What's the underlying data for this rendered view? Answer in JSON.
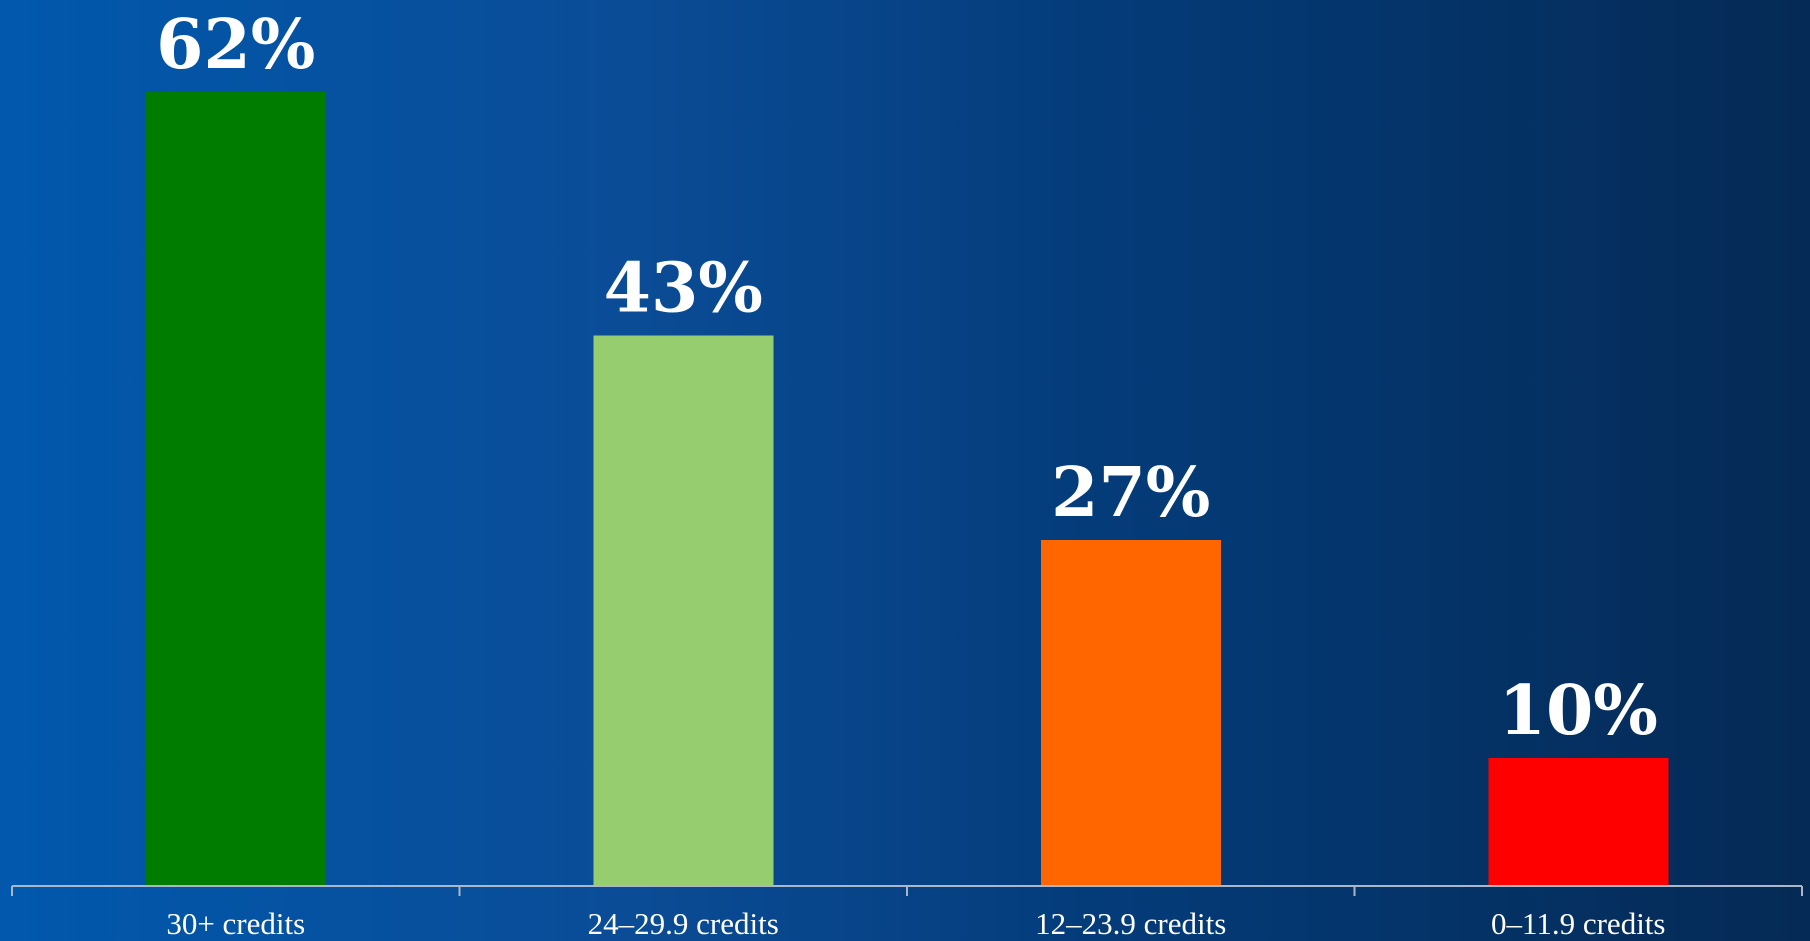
{
  "chart_data": {
    "type": "bar",
    "categories": [
      "30+ credits",
      "24–29.9 credits",
      "12–23.9 credits",
      "0–11.9 credits"
    ],
    "values": [
      62,
      43,
      27,
      10
    ],
    "value_labels": [
      "62%",
      "43%",
      "27%",
      "10%"
    ],
    "colors": [
      "#007d00",
      "#96cd6f",
      "#ff6600",
      "#ff0000"
    ],
    "ylim": [
      0,
      62
    ],
    "grid": false,
    "legend": "none",
    "background": {
      "gradient_start": "#0158ad",
      "gradient_end": "#052a55"
    }
  }
}
